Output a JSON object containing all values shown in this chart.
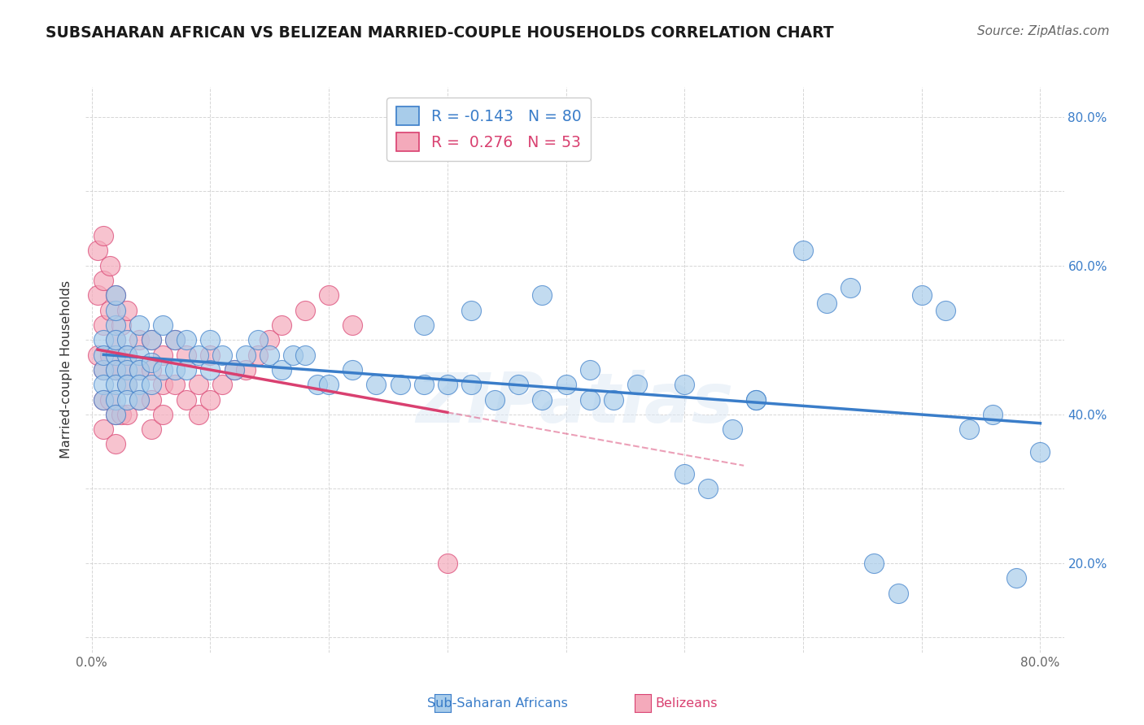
{
  "title": "SUBSAHARAN AFRICAN VS BELIZEAN MARRIED-COUPLE HOUSEHOLDS CORRELATION CHART",
  "source": "Source: ZipAtlas.com",
  "ylabel": "Married-couple Households",
  "xlim": [
    -0.005,
    0.82
  ],
  "ylim": [
    0.08,
    0.84
  ],
  "x_ticks": [
    0.0,
    0.1,
    0.2,
    0.3,
    0.4,
    0.5,
    0.6,
    0.7,
    0.8
  ],
  "y_ticks": [
    0.1,
    0.2,
    0.3,
    0.4,
    0.5,
    0.6,
    0.7,
    0.8
  ],
  "right_y_tick_labels": [
    "",
    "20.0%",
    "",
    "40.0%",
    "",
    "60.0%",
    "",
    "80.0%"
  ],
  "blue_R": -0.143,
  "blue_N": 80,
  "pink_R": 0.276,
  "pink_N": 53,
  "blue_color": "#A8CCEA",
  "pink_color": "#F4AABB",
  "blue_line_color": "#3A7DC9",
  "pink_line_color": "#D94070",
  "watermark": "ZIPatlas",
  "legend_blue_text_color": "#3A7DC9",
  "legend_pink_text_color": "#D94070",
  "legend_N_color": "#3A7DC9",
  "blue_x": [
    0.01,
    0.01,
    0.01,
    0.01,
    0.01,
    0.02,
    0.02,
    0.02,
    0.02,
    0.02,
    0.02,
    0.02,
    0.02,
    0.02,
    0.03,
    0.03,
    0.03,
    0.03,
    0.03,
    0.04,
    0.04,
    0.04,
    0.04,
    0.04,
    0.05,
    0.05,
    0.05,
    0.06,
    0.06,
    0.07,
    0.07,
    0.08,
    0.08,
    0.09,
    0.1,
    0.1,
    0.11,
    0.12,
    0.13,
    0.14,
    0.15,
    0.16,
    0.17,
    0.18,
    0.19,
    0.2,
    0.22,
    0.24,
    0.26,
    0.28,
    0.3,
    0.32,
    0.34,
    0.36,
    0.38,
    0.4,
    0.42,
    0.44,
    0.46,
    0.5,
    0.52,
    0.54,
    0.56,
    0.28,
    0.32,
    0.38,
    0.42,
    0.5,
    0.56,
    0.62,
    0.64,
    0.7,
    0.72,
    0.74,
    0.76,
    0.78,
    0.6,
    0.66,
    0.68,
    0.8
  ],
  "blue_y": [
    0.46,
    0.44,
    0.42,
    0.5,
    0.48,
    0.48,
    0.46,
    0.44,
    0.42,
    0.4,
    0.52,
    0.5,
    0.54,
    0.56,
    0.5,
    0.48,
    0.46,
    0.44,
    0.42,
    0.52,
    0.48,
    0.46,
    0.44,
    0.42,
    0.5,
    0.47,
    0.44,
    0.52,
    0.46,
    0.5,
    0.46,
    0.5,
    0.46,
    0.48,
    0.5,
    0.46,
    0.48,
    0.46,
    0.48,
    0.5,
    0.48,
    0.46,
    0.48,
    0.48,
    0.44,
    0.44,
    0.46,
    0.44,
    0.44,
    0.44,
    0.44,
    0.44,
    0.42,
    0.44,
    0.42,
    0.44,
    0.42,
    0.42,
    0.44,
    0.44,
    0.3,
    0.38,
    0.42,
    0.52,
    0.54,
    0.56,
    0.46,
    0.32,
    0.42,
    0.55,
    0.57,
    0.56,
    0.54,
    0.38,
    0.4,
    0.18,
    0.62,
    0.2,
    0.16,
    0.35
  ],
  "pink_x": [
    0.005,
    0.005,
    0.005,
    0.01,
    0.01,
    0.01,
    0.01,
    0.01,
    0.01,
    0.015,
    0.015,
    0.015,
    0.015,
    0.02,
    0.02,
    0.02,
    0.02,
    0.02,
    0.025,
    0.025,
    0.025,
    0.03,
    0.03,
    0.03,
    0.03,
    0.04,
    0.04,
    0.04,
    0.05,
    0.05,
    0.05,
    0.05,
    0.06,
    0.06,
    0.06,
    0.07,
    0.07,
    0.08,
    0.08,
    0.09,
    0.09,
    0.1,
    0.1,
    0.11,
    0.12,
    0.13,
    0.14,
    0.15,
    0.16,
    0.18,
    0.2,
    0.22,
    0.3
  ],
  "pink_y": [
    0.62,
    0.56,
    0.48,
    0.64,
    0.58,
    0.52,
    0.46,
    0.42,
    0.38,
    0.6,
    0.54,
    0.48,
    0.42,
    0.56,
    0.5,
    0.46,
    0.4,
    0.36,
    0.52,
    0.46,
    0.4,
    0.54,
    0.48,
    0.44,
    0.4,
    0.5,
    0.46,
    0.42,
    0.5,
    0.46,
    0.42,
    0.38,
    0.48,
    0.44,
    0.4,
    0.5,
    0.44,
    0.48,
    0.42,
    0.44,
    0.4,
    0.48,
    0.42,
    0.44,
    0.46,
    0.46,
    0.48,
    0.5,
    0.52,
    0.54,
    0.56,
    0.52,
    0.2
  ]
}
